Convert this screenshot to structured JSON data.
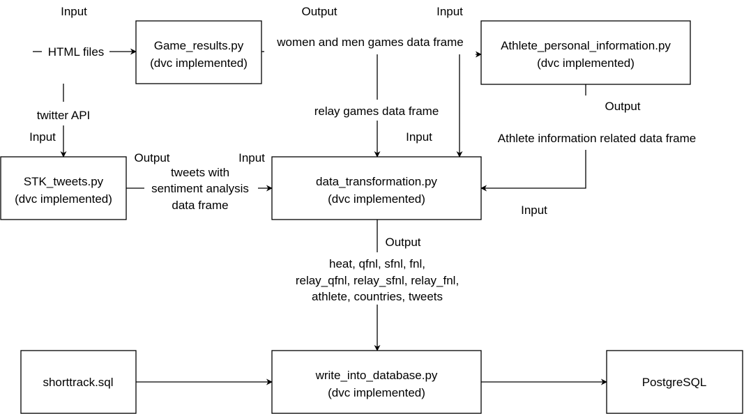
{
  "nodes": {
    "game_results": [
      "Game_results.py",
      "(dvc implemented)"
    ],
    "athlete_info": [
      "Athlete_personal_information.py",
      "(dvc implemented)"
    ],
    "stk_tweets": [
      "STK_tweets.py",
      "(dvc implemented)"
    ],
    "data_transformation": [
      "data_transformation.py",
      "(dvc implemented)"
    ],
    "shorttrack_sql": [
      "shorttrack.sql"
    ],
    "write_into_database": [
      "write_into_database.py",
      "(dvc implemented)"
    ],
    "postgresql": [
      "PostgreSQL"
    ]
  },
  "labels": {
    "input_html": "Input",
    "html_files": "HTML files",
    "output_game_results": "Output",
    "women_men_games": "women and men games data frame",
    "input_athlete": "Input",
    "relay_games": "relay games data frame",
    "twitter_api": "twitter API",
    "input_twitter": "Input",
    "output_tweets": "Output",
    "input_transformation_left": "Input",
    "tweets_sentiment": [
      "tweets with",
      "sentiment analysis",
      "data frame"
    ],
    "input_transformation_top": "Input",
    "output_athlete": "Output",
    "athlete_related": "Athlete information related data frame",
    "input_transformation_right": "Input",
    "output_transformation": "Output",
    "transformation_outputs": [
      "heat, qfnl, sfnl, fnl,",
      "relay_qfnl, relay_sfnl, relay_fnl,",
      "athlete, countries, tweets"
    ]
  }
}
